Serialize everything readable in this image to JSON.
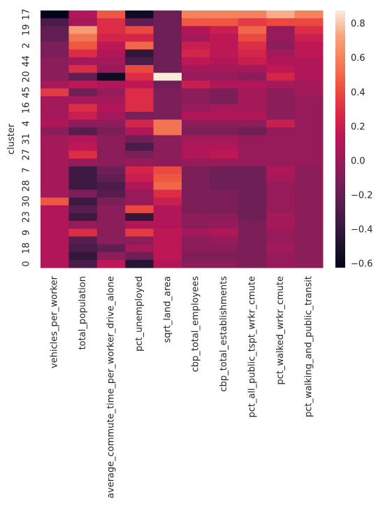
{
  "chart_data": {
    "type": "heatmap",
    "ylabel": "cluster",
    "columns": [
      "vehicles_per_worker",
      "total_population",
      "average_commute_time_per_worker_drive_alone",
      "pct_unemployed",
      "sqrt_land_area",
      "cbp_total_employees",
      "cbp_total_establishments",
      "pct_all_public_tspt_wrkr_cmute",
      "pct_walked_wrkr_cmute",
      "pct_walking_and_public_transit"
    ],
    "categories": [
      "17",
      null,
      "19",
      null,
      "2",
      null,
      "44",
      null,
      "20",
      null,
      "45",
      null,
      "16",
      null,
      "4",
      null,
      "31",
      null,
      "27",
      null,
      "7",
      null,
      "28",
      null,
      "30",
      null,
      "23",
      null,
      "9",
      null,
      "18",
      null,
      "0"
    ],
    "values": [
      [
        -0.62,
        0.1,
        0.45,
        -0.55,
        -0.15,
        0.6,
        0.6,
        0.6,
        0.75,
        0.6
      ],
      [
        -0.3,
        0.05,
        0.3,
        -0.2,
        -0.15,
        0.45,
        0.45,
        0.35,
        0.4,
        0.4
      ],
      [
        -0.2,
        0.7,
        0.3,
        0.4,
        -0.15,
        0.1,
        0.2,
        0.5,
        0.0,
        0.3
      ],
      [
        -0.2,
        0.55,
        0.25,
        0.25,
        -0.15,
        0.05,
        0.15,
        0.4,
        0.0,
        0.2
      ],
      [
        -0.1,
        0.45,
        0.15,
        0.5,
        -0.15,
        0.2,
        0.15,
        0.3,
        -0.05,
        0.15
      ],
      [
        -0.1,
        0.3,
        0.1,
        -0.4,
        -0.15,
        0.25,
        0.15,
        0.25,
        0.05,
        0.15
      ],
      [
        -0.05,
        0.05,
        0.05,
        -0.3,
        -0.15,
        0.15,
        0.1,
        0.2,
        0.1,
        0.1
      ],
      [
        -0.05,
        0.3,
        0.0,
        0.4,
        -0.15,
        0.05,
        0.05,
        0.05,
        0.15,
        0.1
      ],
      [
        -0.05,
        -0.2,
        -0.55,
        0.3,
        0.88,
        0.0,
        0.0,
        -0.05,
        0.25,
        0.1
      ],
      [
        0.05,
        0.15,
        0.1,
        0.15,
        -0.15,
        0.2,
        0.1,
        0.1,
        0.05,
        0.05
      ],
      [
        0.35,
        -0.15,
        0.0,
        0.3,
        -0.1,
        -0.05,
        -0.1,
        0.05,
        -0.05,
        0.05
      ],
      [
        0.05,
        0.05,
        0.05,
        0.3,
        -0.1,
        -0.05,
        -0.1,
        0.05,
        -0.05,
        0.0
      ],
      [
        0.05,
        0.3,
        0.1,
        0.3,
        -0.1,
        0.0,
        0.05,
        0.05,
        -0.05,
        0.0
      ],
      [
        0.05,
        0.2,
        0.05,
        -0.1,
        -0.1,
        0.1,
        0.1,
        0.1,
        -0.05,
        0.0
      ],
      [
        0.1,
        -0.05,
        -0.05,
        0.25,
        0.55,
        -0.05,
        -0.05,
        -0.05,
        0.2,
        0.0
      ],
      [
        -0.05,
        -0.25,
        -0.1,
        0.1,
        0.55,
        -0.1,
        -0.1,
        -0.15,
        0.0,
        0.0
      ],
      [
        0.05,
        0.1,
        -0.05,
        -0.15,
        -0.05,
        0.05,
        0.05,
        0.0,
        0.0,
        0.0
      ],
      [
        0.05,
        0.15,
        -0.05,
        -0.3,
        -0.05,
        0.1,
        0.1,
        0.0,
        0.0,
        0.0
      ],
      [
        0.05,
        0.3,
        -0.05,
        -0.1,
        -0.05,
        0.1,
        0.15,
        0.0,
        0.0,
        0.0
      ],
      [
        0.05,
        0.0,
        -0.05,
        0.0,
        -0.05,
        0.0,
        0.0,
        0.0,
        0.0,
        0.0
      ],
      [
        0.05,
        -0.35,
        -0.15,
        0.25,
        0.4,
        -0.1,
        -0.15,
        -0.15,
        0.1,
        -0.05
      ],
      [
        0.05,
        -0.35,
        -0.2,
        0.2,
        0.45,
        -0.1,
        -0.15,
        -0.15,
        0.05,
        -0.05
      ],
      [
        0.05,
        -0.35,
        -0.3,
        0.1,
        0.5,
        -0.1,
        -0.15,
        -0.15,
        0.0,
        -0.05
      ],
      [
        0.05,
        -0.1,
        -0.25,
        0.0,
        0.3,
        -0.1,
        -0.1,
        -0.15,
        0.0,
        -0.05
      ],
      [
        0.45,
        -0.35,
        -0.1,
        0.0,
        0.2,
        -0.1,
        -0.1,
        -0.15,
        0.0,
        -0.05
      ],
      [
        0.1,
        -0.25,
        -0.05,
        0.4,
        0.1,
        -0.1,
        -0.1,
        -0.15,
        0.0,
        -0.05
      ],
      [
        0.1,
        -0.35,
        -0.05,
        -0.4,
        0.1,
        -0.05,
        -0.05,
        -0.15,
        0.05,
        -0.05
      ],
      [
        0.1,
        0.0,
        -0.05,
        0.1,
        0.1,
        -0.05,
        0.0,
        -0.1,
        0.05,
        -0.05
      ],
      [
        0.1,
        0.3,
        -0.05,
        0.35,
        0.15,
        0.05,
        0.1,
        -0.1,
        0.0,
        -0.05
      ],
      [
        0.1,
        -0.25,
        -0.05,
        -0.05,
        0.15,
        -0.05,
        0.0,
        -0.1,
        0.0,
        -0.05
      ],
      [
        0.1,
        -0.3,
        -0.2,
        0.05,
        0.15,
        -0.05,
        -0.05,
        -0.1,
        0.05,
        -0.05
      ],
      [
        0.1,
        -0.4,
        -0.05,
        -0.15,
        0.15,
        -0.1,
        -0.1,
        -0.1,
        0.0,
        -0.05
      ],
      [
        0.1,
        -0.3,
        0.15,
        -0.45,
        0.1,
        -0.05,
        -0.05,
        -0.1,
        0.0,
        -0.05
      ]
    ],
    "clim": [
      -0.62,
      0.88
    ],
    "cticks": [
      {
        "value": -0.6,
        "label": "−0.6"
      },
      {
        "value": -0.4,
        "label": "−0.4"
      },
      {
        "value": -0.2,
        "label": "−0.2"
      },
      {
        "value": 0,
        "label": "0.0"
      },
      0.2,
      0.4,
      0.6,
      0.8
    ],
    "colorscale": [
      "#03051a",
      "#221331",
      "#451c47",
      "#691f55",
      "#921c5b",
      "#b91657",
      "#d92847",
      "#ed513e",
      "#f47d57",
      "#f6a47c",
      "#faebdd"
    ]
  }
}
